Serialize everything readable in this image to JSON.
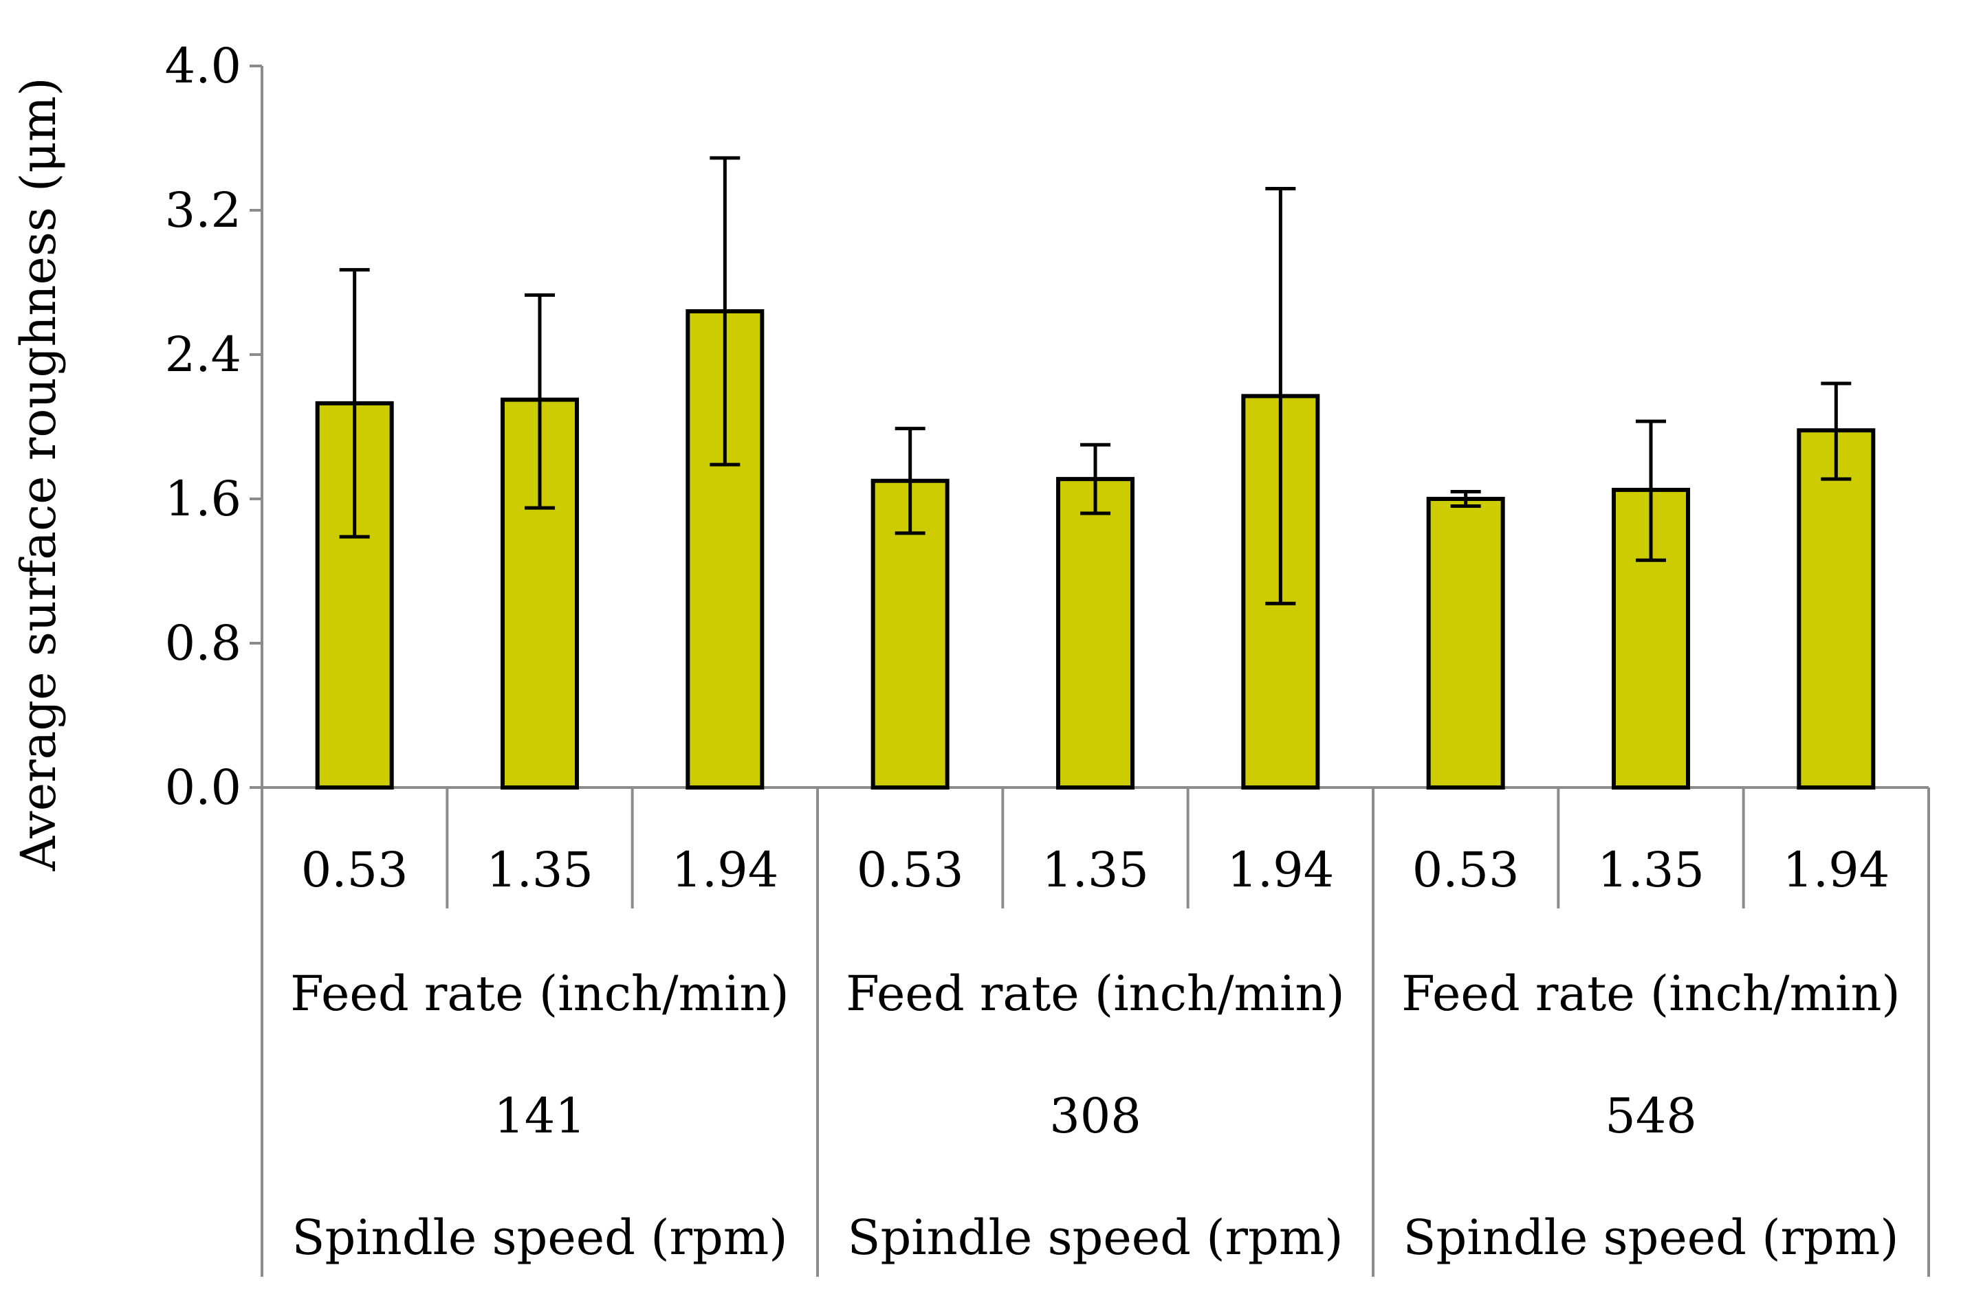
{
  "chart_data": {
    "type": "bar",
    "title": "",
    "ylabel": "Average surface roughness (μm)",
    "ylim": [
      0,
      4.0
    ],
    "yticks": [
      "0.0",
      "0.8",
      "1.6",
      "2.4",
      "3.2",
      "4.0"
    ],
    "categories": [
      "0.53",
      "1.35",
      "1.94",
      "0.53",
      "1.35",
      "1.94",
      "0.53",
      "1.35",
      "1.94"
    ],
    "values": [
      2.13,
      2.15,
      2.64,
      1.7,
      1.71,
      2.17,
      1.6,
      1.65,
      1.98
    ],
    "error_upper": [
      2.87,
      2.73,
      3.49,
      1.99,
      1.9,
      3.32,
      1.64,
      2.03,
      2.24
    ],
    "error_lower": [
      1.39,
      1.55,
      1.79,
      1.41,
      1.52,
      1.02,
      1.56,
      1.26,
      1.71
    ],
    "groups": [
      {
        "feed_label": "Feed rate (inch/min)",
        "speed_value": "141",
        "speed_label": "Spindle speed (rpm)"
      },
      {
        "feed_label": "Feed rate (inch/min)",
        "speed_value": "308",
        "speed_label": "Spindle speed (rpm)"
      },
      {
        "feed_label": "Feed rate (inch/min)",
        "speed_value": "548",
        "speed_label": "Spindle speed (rpm)"
      }
    ],
    "colors": {
      "bar_fill": "#cccc00",
      "bar_stroke": "#000000",
      "axis": "#8c8c8c"
    }
  }
}
